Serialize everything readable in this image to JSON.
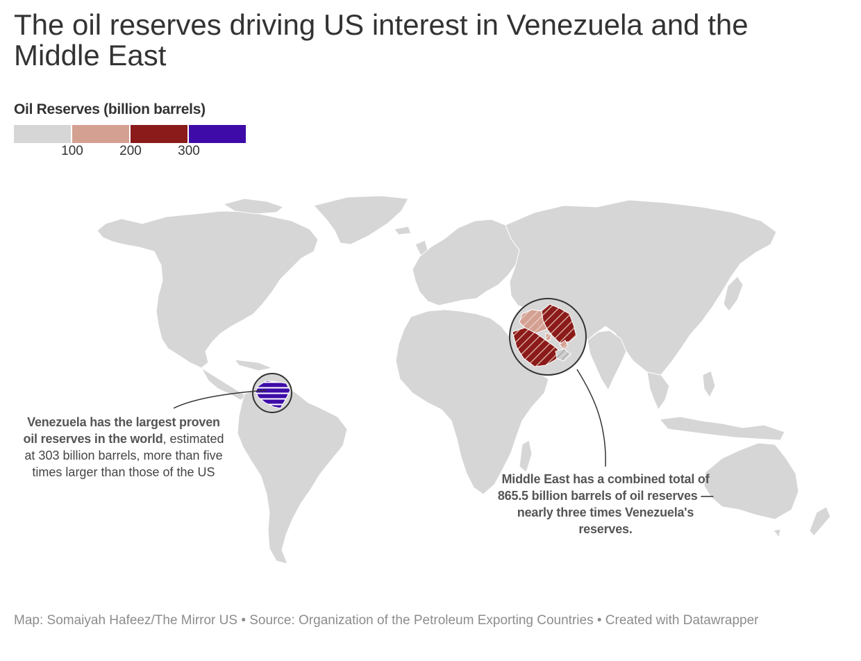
{
  "title": "The oil reserves driving US interest in Venezuela and the Middle East",
  "legend": {
    "title": "Oil Reserves (billion barrels)",
    "colors": [
      "#d6d6d6",
      "#d4a092",
      "#8b1a1a",
      "#3e0ba8"
    ],
    "ticks": [
      "100",
      "200",
      "300"
    ]
  },
  "map_data": {
    "region_colors": {
      "other": "#d6d6d6",
      "venezuela": "#3e0ba8",
      "iran": "#8b1a1a",
      "saudi_arabia": "#8b1a1a",
      "iraq": "#d4a092",
      "kuwait": "#d4a092",
      "uae": "#d4a092",
      "qatar": "#d6d6d6"
    },
    "highlighted": [
      "Venezuela",
      "Iran",
      "Saudi Arabia",
      "Iraq",
      "Kuwait",
      "United Arab Emirates"
    ]
  },
  "annotations": {
    "venezuela": {
      "bold": "Venezuela has the largest proven oil reserves in the world",
      "rest": ", estimated at 303 billion barrels, more than five times larger than those of the US"
    },
    "middle_east": {
      "bold": "Middle East has a combined total of 865.5 billion barrels of oil reserves — nearly three times Venezuela's reserves."
    }
  },
  "footer": "Map: Somaiyah Hafeez/The Mirror US • Source: Organization of the Petroleum Exporting Countries  • Created with Datawrapper"
}
